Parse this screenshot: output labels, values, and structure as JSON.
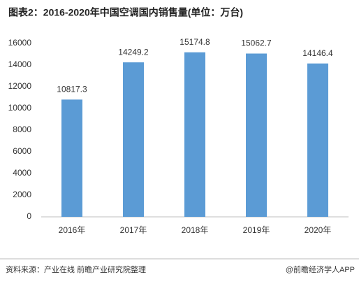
{
  "chart_data": {
    "type": "bar",
    "title": "图表2：2016-2020年中国空调国内销售量(单位：万台)",
    "categories": [
      "2016年",
      "2017年",
      "2018年",
      "2019年",
      "2020年"
    ],
    "values": [
      10817.3,
      14249.2,
      15174.8,
      15062.7,
      14146.4
    ],
    "color": "#5b9bd5",
    "ylim": [
      0,
      16000
    ],
    "yticks": [
      0,
      2000,
      4000,
      6000,
      8000,
      10000,
      12000,
      14000,
      16000
    ],
    "grid": false,
    "source": "资料来源：产业在线 前瞻产业研究院整理",
    "credit": "@前瞻经济学人APP"
  }
}
